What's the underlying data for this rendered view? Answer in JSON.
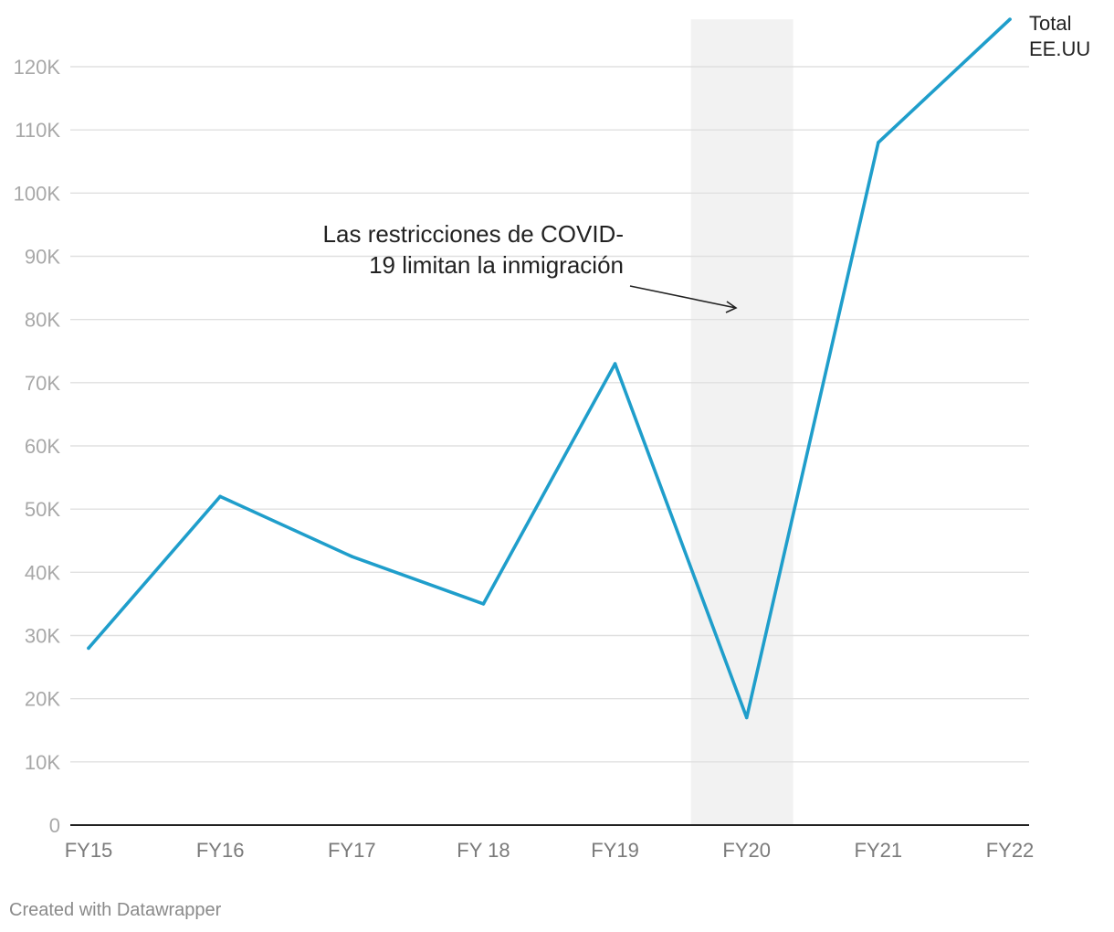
{
  "chart_data": {
    "type": "line",
    "categories": [
      "FY15",
      "FY16",
      "FY17",
      "FY 18",
      "FY19",
      "FY20",
      "FY21",
      "FY22"
    ],
    "series": [
      {
        "name": "Total EE.UU",
        "label_lines": [
          "Total",
          "EE.UU"
        ],
        "values": [
          28000,
          52000,
          42500,
          35000,
          73000,
          17000,
          108000,
          127500
        ],
        "color": "#1f9ecb"
      }
    ],
    "ylim": [
      0,
      127500
    ],
    "yticks": [
      {
        "value": 0,
        "label": "0"
      },
      {
        "value": 10000,
        "label": "10K"
      },
      {
        "value": 20000,
        "label": "20K"
      },
      {
        "value": 30000,
        "label": "30K"
      },
      {
        "value": 40000,
        "label": "40K"
      },
      {
        "value": 50000,
        "label": "50K"
      },
      {
        "value": 60000,
        "label": "60K"
      },
      {
        "value": 70000,
        "label": "70K"
      },
      {
        "value": 80000,
        "label": "80K"
      },
      {
        "value": 90000,
        "label": "90K"
      },
      {
        "value": 100000,
        "label": "100K"
      },
      {
        "value": 110000,
        "label": "110K"
      },
      {
        "value": 120000,
        "label": "120K"
      }
    ],
    "highlight_band": {
      "category": "FY20",
      "color": "#f2f2f2"
    },
    "annotation": {
      "lines": [
        "Las restricciones de COVID-",
        "19 limitan la inmigración"
      ]
    },
    "grid": true,
    "title": "",
    "xlabel": "",
    "ylabel": ""
  },
  "footer": {
    "credit": "Created with Datawrapper"
  }
}
